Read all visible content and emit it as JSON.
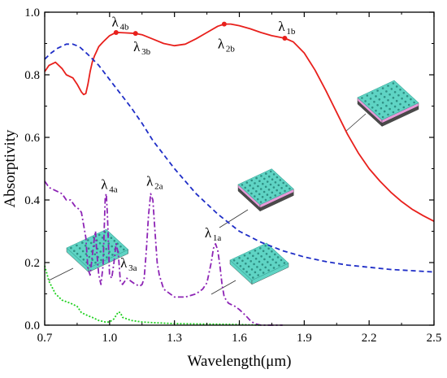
{
  "chart_data": {
    "type": "line",
    "title": "",
    "xlabel": "Wavelength(μm)",
    "ylabel": "Absorptivity",
    "xlim": [
      0.7,
      2.5
    ],
    "ylim": [
      0.0,
      1.0
    ],
    "xticks": [
      "0.7",
      "1.0",
      "1.3",
      "1.6",
      "1.9",
      "2.2",
      "2.5"
    ],
    "yticks": [
      "0.0",
      "0.2",
      "0.4",
      "0.6",
      "0.8",
      "1.0"
    ],
    "grid": false,
    "legend": "none",
    "series": [
      {
        "color": "#e8201c",
        "style": "solid",
        "x": [
          0.7,
          0.72,
          0.75,
          0.78,
          0.8,
          0.83,
          0.85,
          0.87,
          0.88,
          0.89,
          0.9,
          0.91,
          0.92,
          0.93,
          0.94,
          0.95,
          0.97,
          1.0,
          1.02,
          1.04,
          1.07,
          1.1,
          1.12,
          1.15,
          1.2,
          1.25,
          1.3,
          1.35,
          1.4,
          1.45,
          1.5,
          1.53,
          1.56,
          1.6,
          1.65,
          1.7,
          1.75,
          1.81,
          1.85,
          1.9,
          1.95,
          2.0,
          2.05,
          2.1,
          2.15,
          2.2,
          2.25,
          2.3,
          2.35,
          2.4,
          2.45,
          2.5
        ],
        "y": [
          0.81,
          0.83,
          0.84,
          0.82,
          0.8,
          0.79,
          0.77,
          0.745,
          0.737,
          0.74,
          0.77,
          0.81,
          0.84,
          0.86,
          0.875,
          0.89,
          0.905,
          0.925,
          0.932,
          0.935,
          0.934,
          0.933,
          0.932,
          0.928,
          0.914,
          0.9,
          0.893,
          0.898,
          0.915,
          0.935,
          0.955,
          0.962,
          0.962,
          0.957,
          0.947,
          0.935,
          0.925,
          0.917,
          0.905,
          0.87,
          0.815,
          0.75,
          0.68,
          0.61,
          0.55,
          0.5,
          0.46,
          0.425,
          0.395,
          0.37,
          0.35,
          0.332
        ]
      },
      {
        "color": "#1f2ec7",
        "style": "dashed",
        "x": [
          0.7,
          0.73,
          0.76,
          0.8,
          0.83,
          0.86,
          0.9,
          0.95,
          1.0,
          1.05,
          1.1,
          1.15,
          1.2,
          1.3,
          1.4,
          1.5,
          1.6,
          1.7,
          1.8,
          1.9,
          2.0,
          2.1,
          2.2,
          2.3,
          2.4,
          2.5
        ],
        "y": [
          0.85,
          0.87,
          0.885,
          0.898,
          0.898,
          0.89,
          0.865,
          0.83,
          0.785,
          0.74,
          0.695,
          0.645,
          0.59,
          0.5,
          0.42,
          0.355,
          0.3,
          0.265,
          0.238,
          0.218,
          0.203,
          0.192,
          0.185,
          0.178,
          0.174,
          0.17
        ]
      },
      {
        "color": "#8d24b5",
        "style": "dashdot",
        "x": [
          0.7,
          0.72,
          0.75,
          0.78,
          0.8,
          0.82,
          0.84,
          0.86,
          0.87,
          0.89,
          0.9,
          0.91,
          0.92,
          0.93,
          0.935,
          0.94,
          0.95,
          0.96,
          0.97,
          0.98,
          0.985,
          0.99,
          1.0,
          1.01,
          1.02,
          1.03,
          1.04,
          1.05,
          1.06,
          1.08,
          1.1,
          1.12,
          1.14,
          1.15,
          1.16,
          1.17,
          1.18,
          1.19,
          1.2,
          1.21,
          1.22,
          1.23,
          1.25,
          1.3,
          1.35,
          1.4,
          1.43,
          1.45,
          1.47,
          1.48,
          1.49,
          1.5,
          1.51,
          1.52,
          1.53,
          1.55,
          1.58,
          1.6,
          1.63,
          1.65,
          1.67,
          1.7,
          1.75,
          1.8
        ],
        "y": [
          0.46,
          0.44,
          0.43,
          0.42,
          0.4,
          0.4,
          0.38,
          0.37,
          0.36,
          0.28,
          0.18,
          0.16,
          0.22,
          0.28,
          0.3,
          0.24,
          0.16,
          0.13,
          0.19,
          0.41,
          0.42,
          0.35,
          0.16,
          0.15,
          0.2,
          0.26,
          0.23,
          0.14,
          0.13,
          0.15,
          0.14,
          0.13,
          0.125,
          0.13,
          0.15,
          0.24,
          0.35,
          0.42,
          0.4,
          0.3,
          0.2,
          0.16,
          0.115,
          0.09,
          0.09,
          0.1,
          0.115,
          0.135,
          0.2,
          0.245,
          0.26,
          0.24,
          0.19,
          0.13,
          0.09,
          0.07,
          0.06,
          0.05,
          0.03,
          0.015,
          0.005,
          0.0,
          0.0,
          0.0
        ]
      },
      {
        "color": "#1fd11f",
        "style": "dotted",
        "x": [
          0.7,
          0.72,
          0.75,
          0.78,
          0.8,
          0.82,
          0.85,
          0.87,
          0.9,
          0.92,
          0.95,
          0.98,
          1.0,
          1.02,
          1.04,
          1.05,
          1.06,
          1.08,
          1.1,
          1.15,
          1.2,
          1.3,
          1.4,
          1.5,
          1.6,
          1.7
        ],
        "y": [
          0.19,
          0.14,
          0.1,
          0.08,
          0.075,
          0.07,
          0.06,
          0.04,
          0.03,
          0.025,
          0.015,
          0.01,
          0.01,
          0.02,
          0.042,
          0.04,
          0.025,
          0.02,
          0.015,
          0.01,
          0.008,
          0.005,
          0.004,
          0.003,
          0.002,
          0.0
        ]
      }
    ],
    "markers": [
      {
        "series": 0,
        "x": 1.03,
        "y": 0.935
      },
      {
        "series": 0,
        "x": 1.12,
        "y": 0.932
      },
      {
        "series": 0,
        "x": 1.53,
        "y": 0.962
      },
      {
        "series": 0,
        "x": 1.81,
        "y": 0.917
      }
    ],
    "annotations": [
      {
        "main": "λ",
        "sub": "4b",
        "x": 1.01,
        "y": 0.955
      },
      {
        "main": "λ",
        "sub": "3b",
        "x": 1.11,
        "y": 0.875
      },
      {
        "main": "λ",
        "sub": "2b",
        "x": 1.5,
        "y": 0.885
      },
      {
        "main": "λ",
        "sub": "1b",
        "x": 1.78,
        "y": 0.94
      },
      {
        "main": "λ",
        "sub": "4a",
        "x": 0.96,
        "y": 0.435
      },
      {
        "main": "λ",
        "sub": "2a",
        "x": 1.17,
        "y": 0.445
      },
      {
        "main": "λ",
        "sub": "3a",
        "x": 1.05,
        "y": 0.185
      },
      {
        "main": "λ",
        "sub": "1a",
        "x": 1.44,
        "y": 0.28
      }
    ]
  }
}
